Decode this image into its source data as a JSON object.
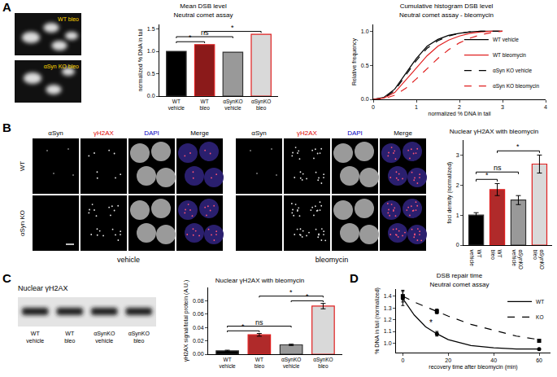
{
  "figure": {
    "panels": [
      "A",
      "B",
      "C",
      "D"
    ],
    "comet_images": [
      "WT bleo",
      "αSyn KO bleo"
    ],
    "microscopy": {
      "rows": [
        "WT",
        "αSyn KO"
      ],
      "columns": [
        "αSyn",
        "γH2AX",
        "DAPI",
        "Merge"
      ],
      "conditions": [
        "vehicle",
        "bleomycin"
      ]
    },
    "blot": {
      "title": "Nuclear γH2AX",
      "lanes": [
        "WT vehicle",
        "WT bleo",
        "αSynKO vehicle",
        "αSynKO bleo"
      ]
    }
  },
  "chart_data": [
    {
      "type": "bar",
      "title": "Mean DSB level\nNeutral comet assay",
      "y_label": "normalized % DNA in tail",
      "categories": [
        "WT vehicle",
        "WT bleo",
        "αSynKO vehicle",
        "αSynKO bleo"
      ],
      "values": [
        1.0,
        1.15,
        0.98,
        1.38
      ],
      "colors": [
        "#000000",
        "#8b1a1a",
        "#999999",
        "#d9d9d9"
      ],
      "ylim": [
        0,
        1.6
      ],
      "yticks": [
        {
          "value": 0,
          "label": "0.0"
        },
        {
          "value": 0.5,
          "label": "0.5"
        },
        {
          "value": 1,
          "label": "1.0"
        },
        {
          "value": 1.5,
          "label": "1.5"
        }
      ],
      "grid": false,
      "significance": [
        {
          "from": 0,
          "to": 1,
          "label": "*"
        },
        {
          "from": 0,
          "to": 2,
          "label": "ns"
        },
        {
          "from": 1,
          "to": 3,
          "label": "*"
        }
      ]
    },
    {
      "type": "line",
      "title": "Cumulative histogram DSB level\nNeutral comet assay - bleomycin",
      "x_label": "normalized % DNA in tail",
      "y_label": "Relative frequency",
      "x": [
        0,
        0.25,
        0.5,
        0.75,
        1,
        1.25,
        1.5,
        1.75,
        2,
        2.25,
        2.5,
        2.75,
        3
      ],
      "series": [
        {
          "name": "WT vehicle",
          "color": "#000000",
          "line_style": "solid",
          "values": [
            0,
            0.03,
            0.15,
            0.38,
            0.6,
            0.78,
            0.88,
            0.94,
            0.97,
            0.99,
            1,
            1,
            1
          ]
        },
        {
          "name": "WT bleomycin",
          "color": "#e02020",
          "line_style": "solid",
          "values": [
            0,
            0.02,
            0.1,
            0.28,
            0.45,
            0.64,
            0.78,
            0.87,
            0.93,
            0.97,
            0.99,
            1,
            1
          ]
        },
        {
          "name": "αSyn KO vehicle",
          "color": "#000000",
          "line_style": "dashed",
          "values": [
            0,
            0.02,
            0.13,
            0.35,
            0.57,
            0.75,
            0.86,
            0.93,
            0.97,
            0.99,
            1,
            1,
            1
          ]
        },
        {
          "name": "αSyn KO bleomycin",
          "color": "#e02020",
          "line_style": "dashed",
          "values": [
            0,
            0.01,
            0.06,
            0.16,
            0.3,
            0.45,
            0.6,
            0.73,
            0.83,
            0.9,
            0.95,
            0.98,
            1
          ]
        }
      ],
      "xlim": [
        0,
        4
      ],
      "xticks": [
        0,
        1,
        2,
        3,
        4
      ],
      "ylim": [
        0,
        1.1
      ],
      "yticks": [
        {
          "value": 0,
          "label": "0.0"
        },
        {
          "value": 0.5,
          "label": "0.5"
        },
        {
          "value": 1,
          "label": "1.0"
        }
      ],
      "grid": false,
      "legend": "lower right"
    },
    {
      "type": "bar",
      "title": "Nuclear γH2AX with bleomycin",
      "y_label": "foci density (normalized)",
      "categories": [
        "WT vehicle",
        "WT bleo",
        "αSynKO vehicle",
        "αSynKO bleo"
      ],
      "values": [
        1.0,
        1.85,
        1.5,
        2.7
      ],
      "errors": [
        0.08,
        0.2,
        0.15,
        0.3
      ],
      "colors": [
        "#000000",
        "#b02a2a",
        "#999999",
        "#d9d9d9"
      ],
      "ylim": [
        0,
        3.5
      ],
      "yticks": [
        0,
        1,
        2,
        3
      ],
      "grid": false,
      "significance": [
        {
          "from": 0,
          "to": 1,
          "label": "*"
        },
        {
          "from": 0,
          "to": 2,
          "label": "ns"
        },
        {
          "from": 1,
          "to": 3,
          "label": "*"
        }
      ]
    },
    {
      "type": "bar",
      "title": "Nuclear γH2AX with bleomycin",
      "y_label": "γH2AX signal/total protein (A.U.)",
      "categories": [
        "WT vehicle",
        "WT bleo",
        "αSynKO vehicle",
        "αSynKO bleo"
      ],
      "values": [
        0.005,
        0.029,
        0.014,
        0.072
      ],
      "errors": [
        0.001,
        0.002,
        0.001,
        0.004
      ],
      "colors": [
        "#000000",
        "#b02a2a",
        "#999999",
        "#d9d9d9"
      ],
      "ylim": [
        0,
        0.1
      ],
      "yticks": [
        {
          "value": 0,
          "label": "0.00"
        },
        {
          "value": 0.02,
          "label": "0.02"
        },
        {
          "value": 0.04,
          "label": "0.04"
        },
        {
          "value": 0.06,
          "label": "0.06"
        },
        {
          "value": 0.08,
          "label": "0.08"
        }
      ],
      "grid": false,
      "significance": [
        {
          "from": 0,
          "to": 1,
          "label": "*"
        },
        {
          "from": 0,
          "to": 2,
          "label": "ns"
        },
        {
          "from": 2,
          "to": 3,
          "label": "*"
        },
        {
          "from": 1,
          "to": 3,
          "label": "*"
        }
      ]
    },
    {
      "type": "line",
      "title": "DSB repair time\nNeutral comet assay",
      "x_label": "recovery time after bleomycin (min)",
      "y_label": "% DNA in tail (normalized)",
      "series": [
        {
          "name": "WT",
          "color": "#000000",
          "marker": "circle",
          "line_style": "solid",
          "x": [
            0,
            15,
            60
          ],
          "values": [
            1.38,
            1.08,
            0.95
          ],
          "errors": [
            0.06,
            0.02,
            0.005
          ],
          "fit": {
            "x": [
              0,
              5,
              10,
              15,
              20,
              30,
              40,
              50,
              60
            ],
            "values": [
              1.38,
              1.24,
              1.14,
              1.08,
              1.03,
              0.98,
              0.96,
              0.95,
              0.95
            ]
          }
        },
        {
          "name": "KO",
          "color": "#000000",
          "marker": "square",
          "line_style": "dashed",
          "x": [
            0,
            15,
            60
          ],
          "values": [
            1.4,
            1.27,
            1.02
          ],
          "errors": [
            0.05,
            0.02,
            0.005
          ],
          "fit": {
            "x": [
              0,
              5,
              10,
              15,
              20,
              30,
              40,
              50,
              60
            ],
            "values": [
              1.4,
              1.35,
              1.31,
              1.27,
              1.23,
              1.16,
              1.11,
              1.06,
              1.03
            ]
          }
        }
      ],
      "annotations": [
        {
          "x": 15,
          "text": "*"
        }
      ],
      "xlim": [
        -3,
        65
      ],
      "xticks": [
        0,
        20,
        40,
        60
      ],
      "ylim": [
        0.92,
        1.46
      ],
      "yticks": [
        {
          "value": 1,
          "label": "1.0"
        },
        {
          "value": 1.1,
          "label": "1.1"
        },
        {
          "value": 1.2,
          "label": "1.2"
        },
        {
          "value": 1.3,
          "label": "1.3"
        },
        {
          "value": 1.4,
          "label": "1.4"
        }
      ],
      "grid": false,
      "legend": "upper right"
    }
  ]
}
